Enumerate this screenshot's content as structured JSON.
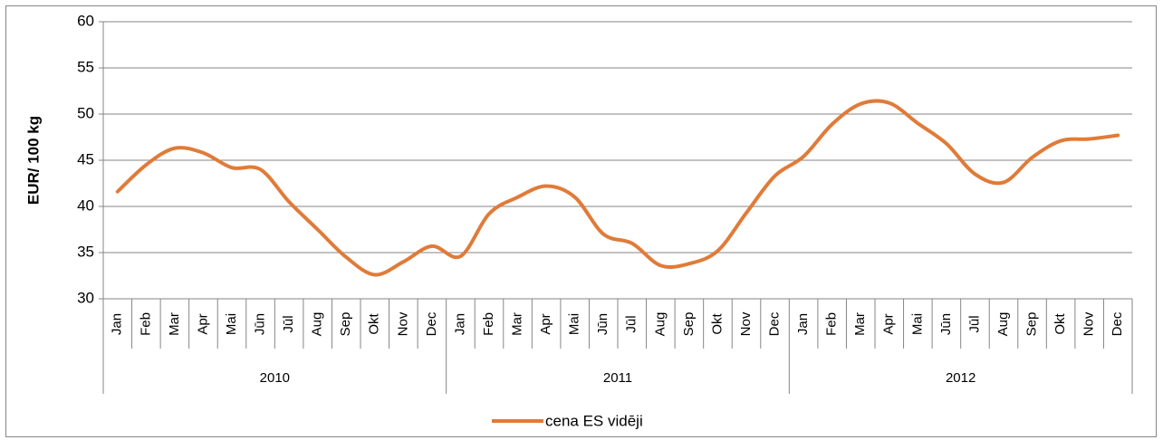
{
  "chart_data": {
    "type": "line",
    "y_label": "EUR/ 100 kg",
    "categories": [
      "Jan",
      "Feb",
      "Mar",
      "Apr",
      "Mai",
      "Jūn",
      "Jūl",
      "Aug",
      "Sep",
      "Okt",
      "Nov",
      "Dec",
      "Jan",
      "Feb",
      "Mar",
      "Apr",
      "Mai",
      "Jūn",
      "Jūl",
      "Aug",
      "Sep",
      "Okt",
      "Nov",
      "Dec",
      "Jan",
      "Feb",
      "Mar",
      "Apr",
      "Mai",
      "Jūn",
      "Jūl",
      "Aug",
      "Sep",
      "Okt",
      "Nov",
      "Dec"
    ],
    "groups": [
      "2010",
      "2011",
      "2012"
    ],
    "series": [
      {
        "name": "cena ES vidēji",
        "color": "#e07b39",
        "values": [
          41.6,
          44.5,
          46.3,
          45.8,
          44.2,
          44.0,
          40.5,
          37.5,
          34.5,
          32.6,
          34.0,
          35.7,
          34.6,
          39.2,
          41.0,
          42.2,
          41.0,
          37.0,
          36.0,
          33.6,
          33.8,
          35.2,
          39.3,
          43.3,
          45.4,
          48.9,
          51.1,
          51.2,
          49.0,
          46.8,
          43.5,
          42.6,
          45.3,
          47.1,
          47.3,
          47.7
        ]
      }
    ],
    "ylim": [
      30,
      60
    ],
    "yticks": [
      30,
      35,
      40,
      45,
      50,
      55,
      60
    ],
    "grid": true,
    "legend": "bottom"
  }
}
